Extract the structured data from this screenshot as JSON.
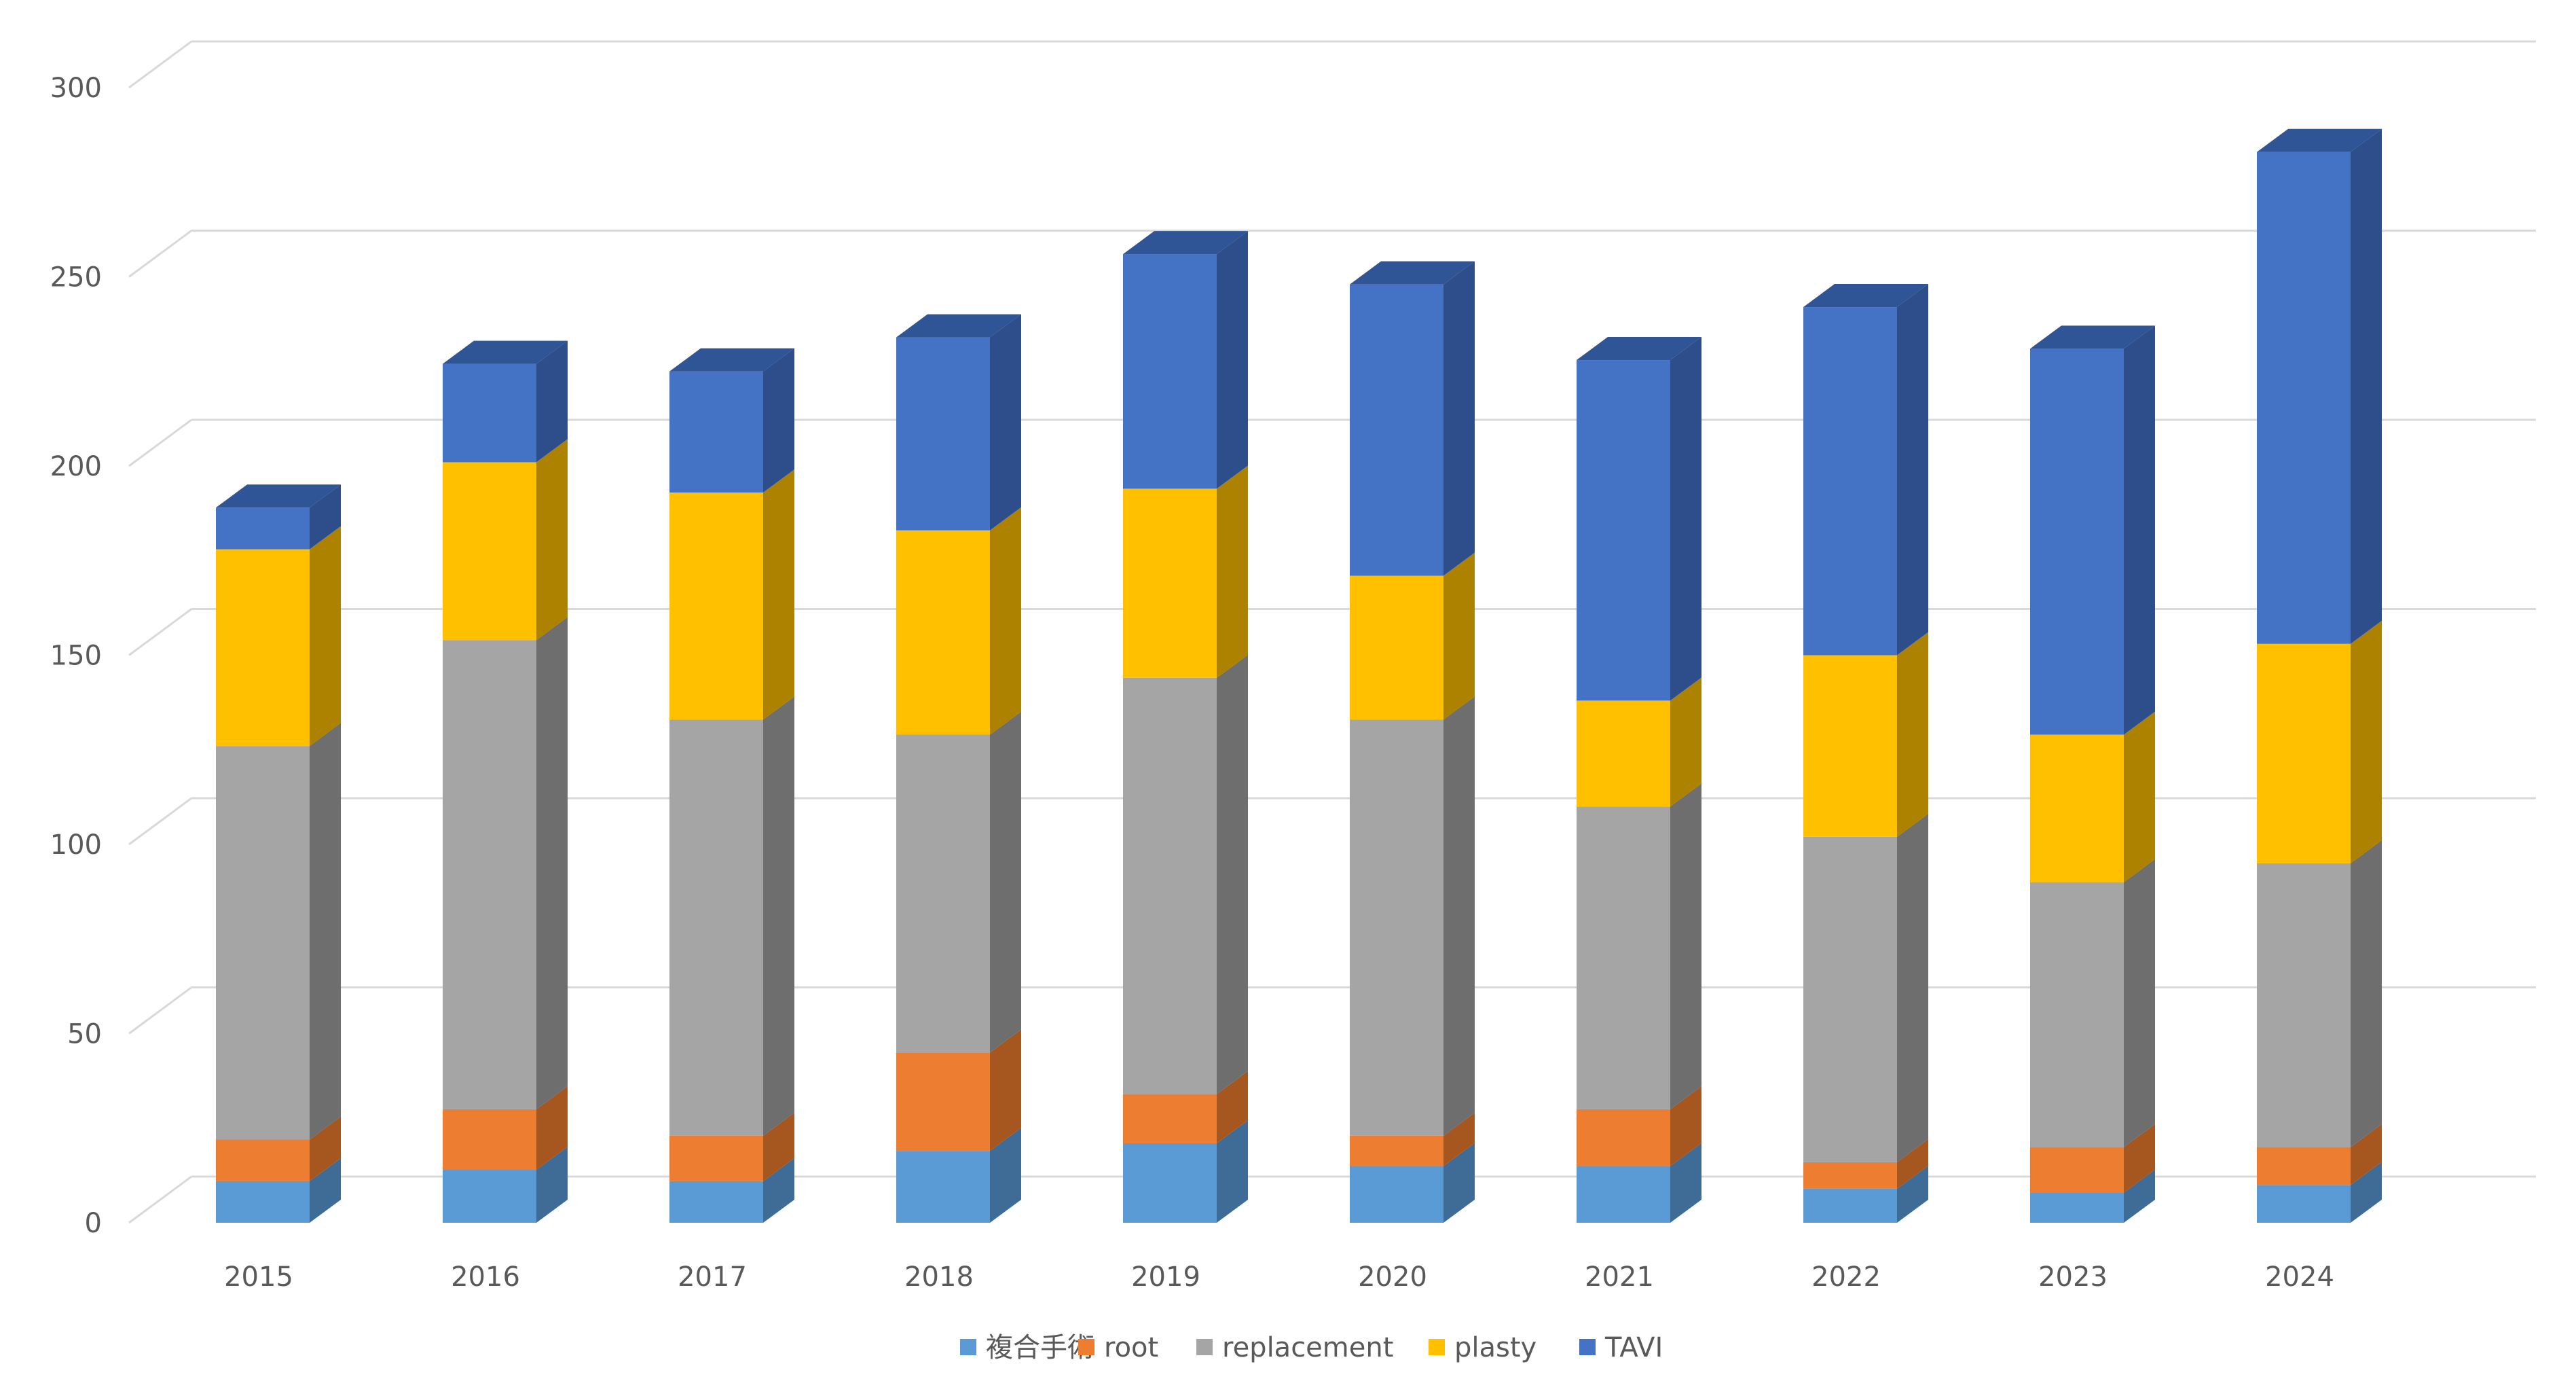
{
  "chart_data": {
    "type": "bar",
    "stacked": true,
    "style": "3d",
    "title": "",
    "xlabel": "",
    "ylabel": "",
    "ylim": [
      0,
      300
    ],
    "yticks": [
      0,
      50,
      100,
      150,
      200,
      250,
      300
    ],
    "grid": true,
    "legend_position": "bottom",
    "categories": [
      "2015",
      "2016",
      "2017",
      "2018",
      "2019",
      "2020",
      "2021",
      "2022",
      "2023",
      "2024"
    ],
    "series": [
      {
        "name": "複合手術",
        "color": "#5B9BD5",
        "side_color": "#3F6C96",
        "top_color": "#4A7FB0",
        "values": [
          11,
          14,
          11,
          19,
          21,
          15,
          15,
          9,
          8,
          10
        ]
      },
      {
        "name": "root",
        "color": "#ED7D31",
        "side_color": "#A6571F",
        "top_color": "#C96A28",
        "values": [
          11,
          16,
          12,
          26,
          13,
          8,
          15,
          7,
          12,
          10
        ]
      },
      {
        "name": "replacement",
        "color": "#A5A5A5",
        "side_color": "#6E6E6E",
        "top_color": "#8A8A8A",
        "values": [
          104,
          124,
          110,
          84,
          110,
          110,
          80,
          86,
          70,
          75
        ]
      },
      {
        "name": "plasty",
        "color": "#FFC000",
        "side_color": "#AD8200",
        "top_color": "#D9A400",
        "values": [
          52,
          47,
          60,
          54,
          50,
          38,
          28,
          48,
          39,
          58
        ]
      },
      {
        "name": "TAVI",
        "color": "#4472C4",
        "side_color": "#2D4E8A",
        "top_color": "#2F5597",
        "values": [
          11,
          26,
          32,
          51,
          62,
          77,
          90,
          92,
          102,
          130
        ]
      }
    ]
  }
}
